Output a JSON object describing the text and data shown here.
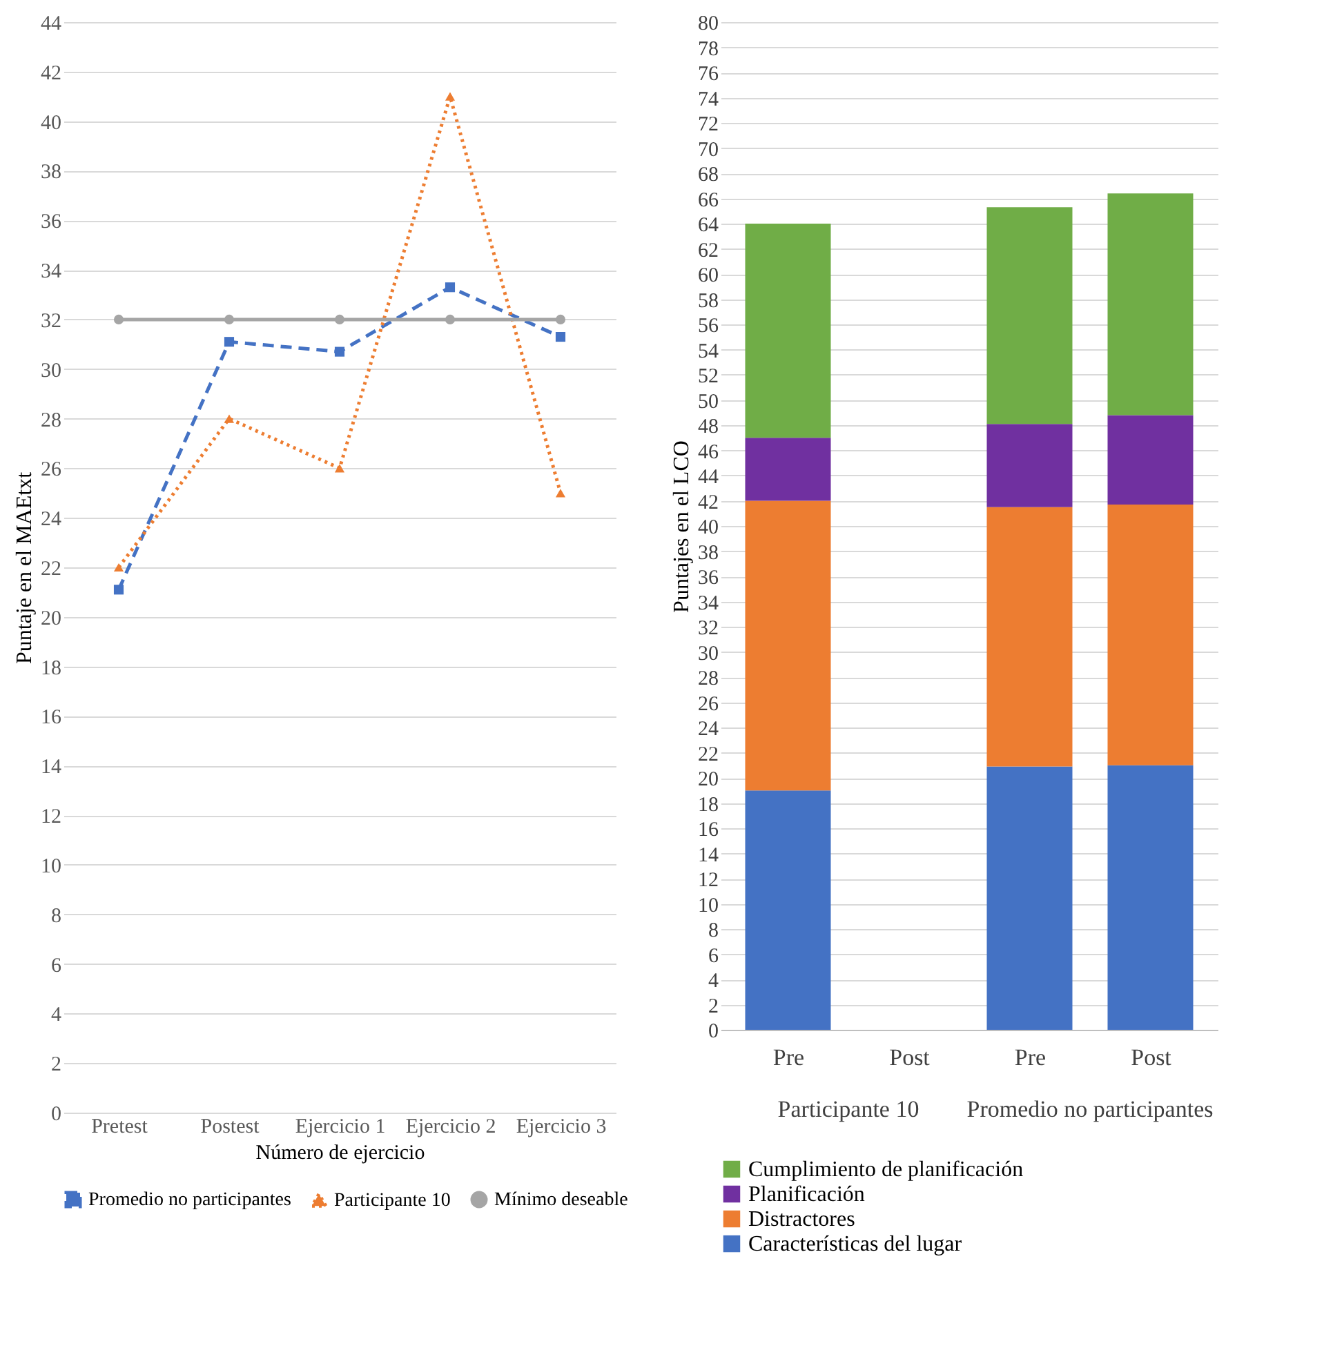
{
  "chart_data": [
    {
      "type": "line",
      "xlabel": "Número de ejercicio",
      "ylabel": "Puntaje en el MAEtxt",
      "categories": [
        "Pretest",
        "Postest",
        "Ejercicio 1",
        "Ejercicio 2",
        "Ejercicio 3"
      ],
      "ylim": [
        0,
        44
      ],
      "yticks": [
        0,
        2,
        4,
        6,
        8,
        10,
        12,
        14,
        16,
        18,
        20,
        22,
        24,
        26,
        28,
        30,
        32,
        34,
        36,
        38,
        40,
        42,
        44
      ],
      "grid": "y",
      "legend": "bottom",
      "series": [
        {
          "name": "Promedio no participantes",
          "color": "#4472c4",
          "marker": "square",
          "line_style": "dashed",
          "values": [
            21.1,
            31.1,
            30.7,
            33.3,
            31.3
          ]
        },
        {
          "name": "Participante 10",
          "color": "#ed7d31",
          "marker": "triangle",
          "line_style": "dotted",
          "values": [
            22,
            28,
            26,
            41,
            25
          ]
        },
        {
          "name": "Mínimo deseable",
          "color": "#a5a5a5",
          "marker": "circle",
          "line_style": "solid",
          "values": [
            32,
            32,
            32,
            32,
            32
          ]
        }
      ]
    },
    {
      "type": "bar",
      "stacked": true,
      "ylabel": "Puntajes en el LCO",
      "categories": [
        "Pre",
        "Post",
        "Pre",
        "Post"
      ],
      "annotations": [
        "Participante 10",
        "Promedio no participantes"
      ],
      "ylim": [
        0,
        80
      ],
      "yticks": [
        0,
        2,
        4,
        6,
        8,
        10,
        12,
        14,
        16,
        18,
        20,
        22,
        24,
        26,
        28,
        30,
        32,
        34,
        36,
        38,
        40,
        42,
        44,
        46,
        48,
        50,
        52,
        54,
        56,
        58,
        60,
        62,
        64,
        66,
        68,
        70,
        72,
        74,
        76,
        78,
        80
      ],
      "grid": "y",
      "legend": "bottom",
      "series": [
        {
          "name": "Características del lugar",
          "color": "#4472c4",
          "values": [
            19,
            null,
            20.9,
            21
          ]
        },
        {
          "name": "Distractores",
          "color": "#ed7d31",
          "values": [
            23,
            null,
            20.6,
            20.7
          ]
        },
        {
          "name": "Planificación",
          "color": "#7030a0",
          "values": [
            5,
            null,
            6.6,
            7.1
          ]
        },
        {
          "name": "Cumplimiento de planificación",
          "color": "#70ad47",
          "values": [
            17,
            null,
            17.2,
            17.6
          ]
        }
      ]
    }
  ]
}
